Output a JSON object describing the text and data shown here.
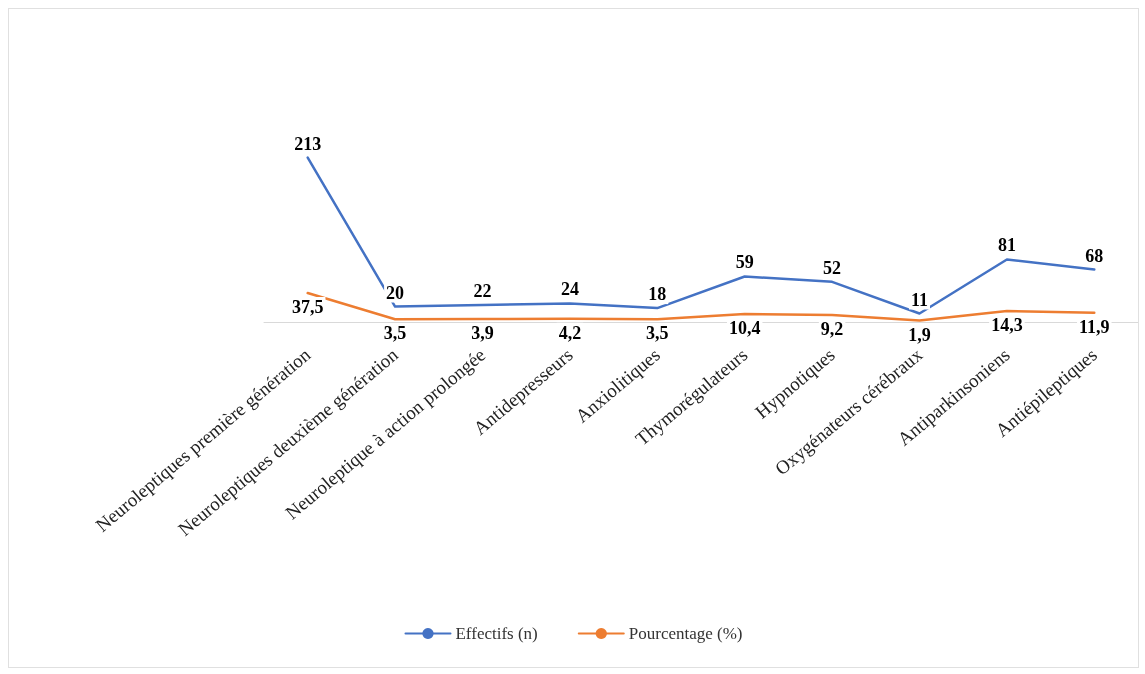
{
  "chart_data": {
    "type": "line",
    "data_labels": true,
    "legend": "bottom",
    "grid": false,
    "marker": "none",
    "line_style": "solid",
    "categories": [
      "Neuroleptiques première génération",
      "Neuroleptiques deuxième génération",
      "Neuroleptique à action prolongée",
      "Antidepresseurs",
      "Anxiolitiques",
      "Thymorégulateurs",
      "Hypnotiques",
      "Oxygénateurs cérébraux",
      "Antiparkinsoniens",
      "Antiépileptiques"
    ],
    "series": [
      {
        "name": "Pourcentage (%)",
        "color": "#ed7d31",
        "values": [
          37.5,
          3.5,
          3.9,
          4.2,
          3.5,
          10.4,
          9.2,
          1.9,
          14.3,
          11.9
        ],
        "value_labels": [
          "37,5",
          "3,5",
          "3,9",
          "4,2",
          "3,5",
          "10,4",
          "9,2",
          "1,9",
          "14,3",
          "11,9"
        ]
      },
      {
        "name": "Effectifs (n)",
        "color": "#4472c4",
        "values": [
          213,
          20,
          22,
          24,
          18,
          59,
          52,
          11,
          81,
          68
        ]
      }
    ]
  }
}
